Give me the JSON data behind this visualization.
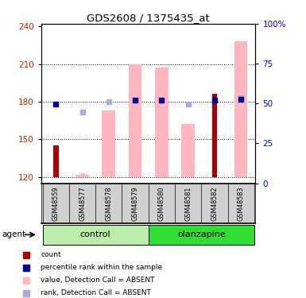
{
  "title": "GDS2608 / 1375435_at",
  "samples": [
    "GSM48559",
    "GSM48577",
    "GSM48578",
    "GSM48579",
    "GSM48580",
    "GSM48581",
    "GSM48582",
    "GSM48583"
  ],
  "ylim_left": [
    115,
    242
  ],
  "ylim_right": [
    0,
    100
  ],
  "yticks_left": [
    120,
    150,
    180,
    210,
    240
  ],
  "yticks_right": [
    0,
    25,
    50,
    75,
    100
  ],
  "ytick_labels_left": [
    "120",
    "150",
    "180",
    "210",
    "240"
  ],
  "ytick_labels_right": [
    "0",
    "25",
    "50",
    "75",
    "100%"
  ],
  "dark_red_bar_values": [
    145,
    0,
    0,
    0,
    0,
    0,
    186,
    0
  ],
  "dark_red_bar_color": "#AA0000",
  "pink_bar_values": [
    0,
    122,
    173,
    210,
    207,
    162,
    0,
    228
  ],
  "pink_bar_color": "#FFB6C1",
  "blue_dot_values": [
    178,
    0,
    0,
    181,
    181,
    0,
    181,
    182
  ],
  "blue_dot_color": "#000099",
  "lavender_dot_values": [
    0,
    172,
    180,
    0,
    0,
    178,
    0,
    183
  ],
  "lavender_dot_color": "#AAAADD",
  "pink_small_dot_values": [
    0,
    122,
    122,
    122,
    122,
    122,
    0,
    122
  ],
  "pink_small_dot_color": "#FFB6C1",
  "baseline": 120,
  "control_label": "control",
  "olanzapine_label": "olanzapine",
  "agent_label": "agent",
  "legend_items": [
    {
      "label": "count",
      "color": "#AA0000"
    },
    {
      "label": "percentile rank within the sample",
      "color": "#000099"
    },
    {
      "label": "value, Detection Call = ABSENT",
      "color": "#FFB6C1"
    },
    {
      "label": "rank, Detection Call = ABSENT",
      "color": "#AAAADD"
    }
  ],
  "control_color": "#BBEEAA",
  "olanzapine_color": "#33DD33",
  "sample_bg_color": "#D0D0D0",
  "ylabel_left_color": "#CC2200",
  "ylabel_right_color": "#0000CC"
}
